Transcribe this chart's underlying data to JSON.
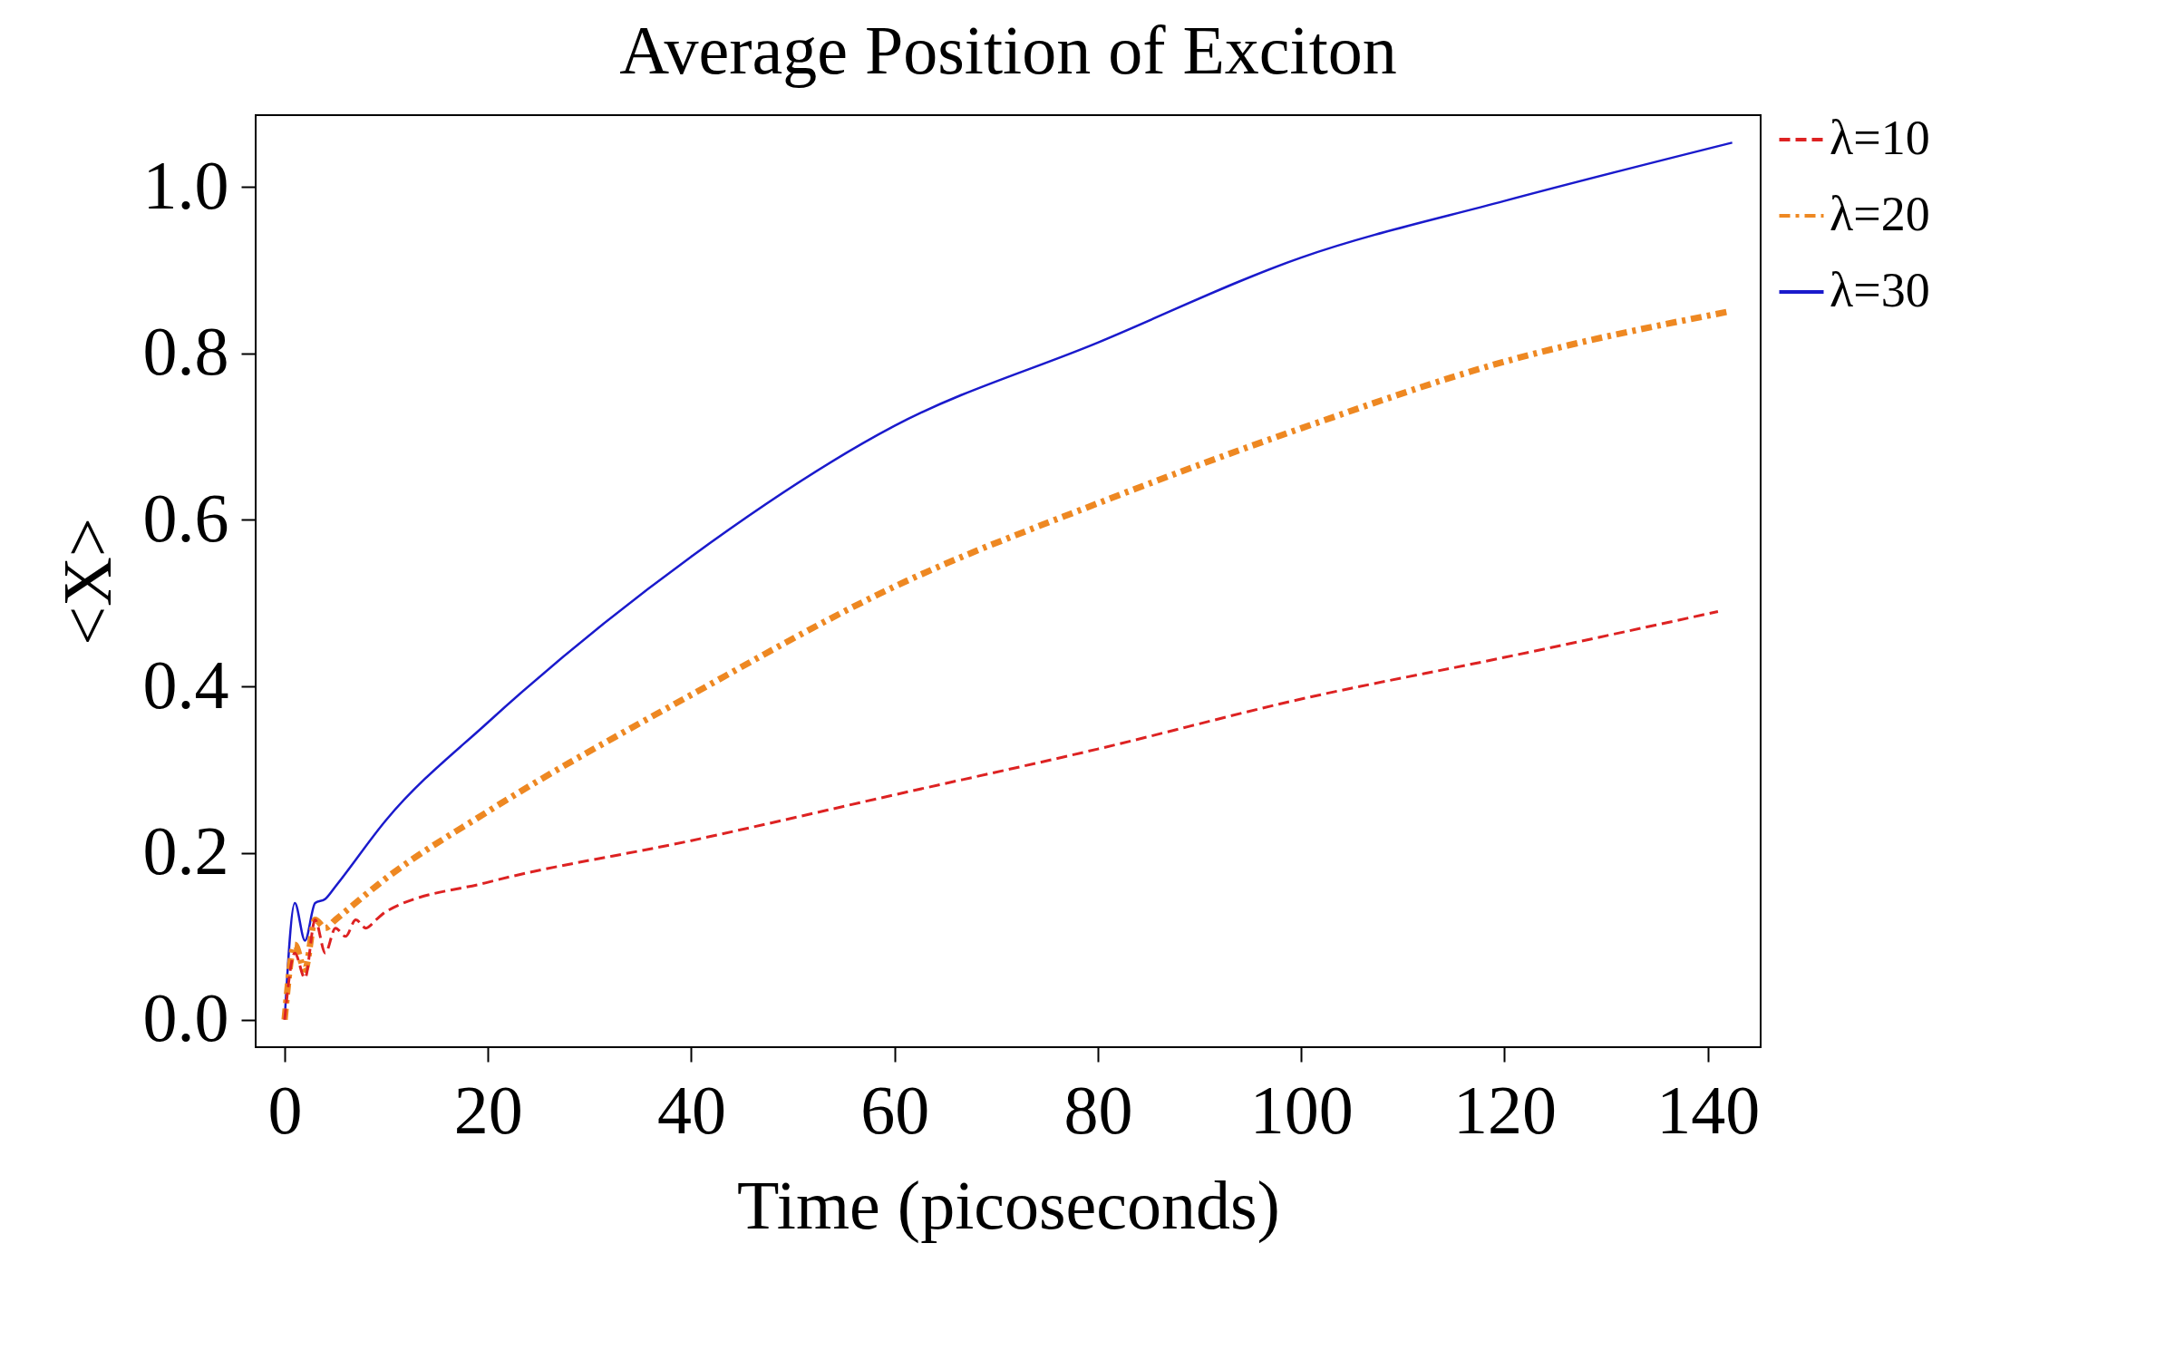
{
  "chart_data": {
    "type": "line",
    "title": "Average Position of Exciton",
    "xlabel": "Time (picoseconds)",
    "ylabel": "<X>",
    "xlim": [
      -2.85,
      145.2
    ],
    "ylim": [
      -0.033,
      1.086
    ],
    "xticks": [
      0,
      20,
      40,
      60,
      80,
      100,
      120,
      140
    ],
    "yticks": [
      {
        "value": 0,
        "label": "0.0"
      },
      {
        "value": 0.2,
        "label": "0.2"
      },
      {
        "value": 0.4,
        "label": "0.4"
      },
      {
        "value": 0.6,
        "label": "0.6"
      },
      {
        "value": 0.8,
        "label": "0.8"
      },
      {
        "value": 1,
        "label": "1.0"
      }
    ],
    "grid": false,
    "legend": "right",
    "series": [
      {
        "name": "λ=10",
        "color": "#dd2222",
        "line_style": "dashed",
        "x": [
          0,
          1,
          2,
          3,
          4,
          5,
          6,
          7,
          8,
          9,
          10,
          20,
          40,
          60,
          80,
          100,
          120,
          141
        ],
        "values": [
          0,
          0.08,
          0.05,
          0.12,
          0.08,
          0.11,
          0.1,
          0.12,
          0.11,
          0.12,
          0.13,
          0.165,
          0.215,
          0.27,
          0.325,
          0.385,
          0.435,
          0.49
        ]
      },
      {
        "name": "λ=20",
        "color": "#ee8822",
        "line_style": "dashdot",
        "x": [
          0,
          1,
          2,
          3,
          4,
          5,
          10,
          20,
          40,
          60,
          80,
          100,
          120,
          142
        ],
        "values": [
          0,
          0.09,
          0.06,
          0.12,
          0.11,
          0.12,
          0.17,
          0.25,
          0.39,
          0.52,
          0.62,
          0.71,
          0.79,
          0.85
        ]
      },
      {
        "name": "λ=30",
        "color": "#1a1acc",
        "line_style": "solid",
        "x": [
          0,
          1,
          2,
          3,
          4,
          5,
          10,
          20,
          40,
          60,
          80,
          100,
          120,
          142.4
        ],
        "values": [
          0,
          0.14,
          0.095,
          0.14,
          0.145,
          0.16,
          0.24,
          0.357,
          0.556,
          0.713,
          0.813,
          0.915,
          0.983,
          1.053
        ]
      }
    ]
  }
}
